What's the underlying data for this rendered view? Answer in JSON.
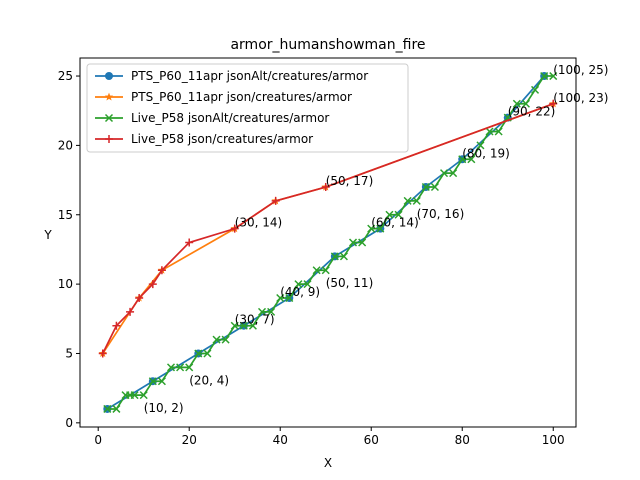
{
  "chart_data": {
    "type": "line",
    "title": "armor_humanshowman_fire",
    "xlabel": "X",
    "ylabel": "Y",
    "xlim": [
      -4,
      105
    ],
    "ylim": [
      -0.3,
      26.3
    ],
    "xticks": [
      0,
      20,
      40,
      60,
      80,
      100
    ],
    "yticks": [
      0,
      5,
      10,
      15,
      20,
      25
    ],
    "grid": false,
    "legend_position": "top-left",
    "series": [
      {
        "name": "PTS_P60_11apr jsonAlt/creatures/armor",
        "color": "#1f77b4",
        "marker": "circle",
        "x": [
          2,
          12,
          22,
          32,
          42,
          52,
          62,
          72,
          80,
          90,
          98
        ],
        "y": [
          1,
          3,
          5,
          7,
          9,
          12,
          14,
          17,
          19,
          22,
          25
        ]
      },
      {
        "name": "PTS_P60_11apr json/creatures/armor",
        "color": "#ff7f0e",
        "marker": "star",
        "x": [
          1,
          9,
          14,
          30,
          39,
          50,
          100
        ],
        "y": [
          5,
          9,
          11,
          14,
          16,
          17,
          23
        ]
      },
      {
        "name": "Live_P58 jsonAlt/creatures/armor",
        "color": "#2ca02c",
        "marker": "x",
        "x": [
          2,
          4,
          6,
          7,
          8,
          10,
          12,
          14,
          16,
          18,
          20,
          22,
          24,
          26,
          28,
          30,
          32,
          34,
          36,
          38,
          40,
          42,
          44,
          46,
          48,
          50,
          52,
          54,
          56,
          58,
          60,
          62,
          64,
          66,
          68,
          70,
          72,
          74,
          76,
          78,
          80,
          82,
          84,
          86,
          88,
          90,
          92,
          94,
          96,
          98,
          100
        ],
        "y": [
          1,
          1,
          2,
          2,
          2,
          2,
          3,
          3,
          4,
          4,
          4,
          5,
          5,
          6,
          6,
          7,
          7,
          7,
          8,
          8,
          9,
          9,
          10,
          10,
          11,
          11,
          12,
          12,
          13,
          13,
          14,
          14,
          15,
          15,
          16,
          16,
          17,
          17,
          18,
          18,
          19,
          19,
          20,
          21,
          21,
          22,
          23,
          23,
          24,
          25,
          25
        ]
      },
      {
        "name": "Live_P58 json/creatures/armor",
        "color": "#d62728",
        "marker": "plus",
        "x": [
          1,
          4,
          7,
          9,
          12,
          14,
          20,
          30,
          39,
          50,
          100
        ],
        "y": [
          5,
          7,
          8,
          9,
          10,
          11,
          13,
          14,
          16,
          17,
          23
        ]
      }
    ],
    "annotations": [
      {
        "text": "(10, 2)",
        "x": 10,
        "y": 2,
        "anchor": "below"
      },
      {
        "text": "(20, 4)",
        "x": 20,
        "y": 4,
        "anchor": "below"
      },
      {
        "text": "(30, 7)",
        "x": 30,
        "y": 7,
        "anchor": "above"
      },
      {
        "text": "(40, 9)",
        "x": 40,
        "y": 9,
        "anchor": "above"
      },
      {
        "text": "(50, 11)",
        "x": 50,
        "y": 11,
        "anchor": "below"
      },
      {
        "text": "(60, 14)",
        "x": 60,
        "y": 14,
        "anchor": "above"
      },
      {
        "text": "(70, 16)",
        "x": 70,
        "y": 16,
        "anchor": "below"
      },
      {
        "text": "(80, 19)",
        "x": 80,
        "y": 19,
        "anchor": "above"
      },
      {
        "text": "(90, 22)",
        "x": 90,
        "y": 22,
        "anchor": "above"
      },
      {
        "text": "(100, 25)",
        "x": 100,
        "y": 25,
        "anchor": "above"
      },
      {
        "text": "(30, 14)",
        "x": 30,
        "y": 14,
        "anchor": "above"
      },
      {
        "text": "(50, 17)",
        "x": 50,
        "y": 17,
        "anchor": "above"
      },
      {
        "text": "(100, 23)",
        "x": 100,
        "y": 23,
        "anchor": "above"
      }
    ]
  }
}
